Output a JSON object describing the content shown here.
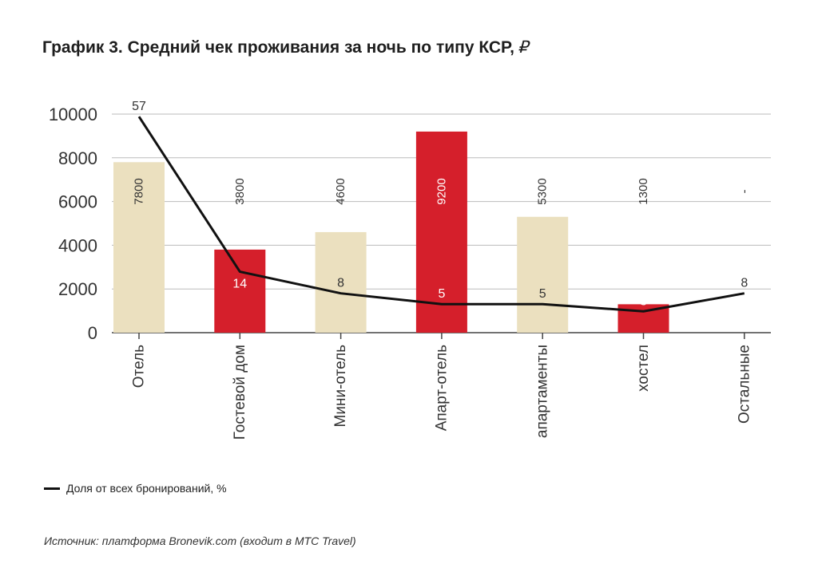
{
  "chart_data": {
    "type": "bar+line",
    "title": "График 3. Средний чек проживания за ночь по типу КСР,",
    "title_unit": "₽",
    "categories": [
      "Отель",
      "Гостевой дом",
      "Мини-отель",
      "Апарт-отель",
      "апартаменты",
      "хостел",
      "Остальные"
    ],
    "bar_values": [
      7800,
      3800,
      4600,
      9200,
      5300,
      1300,
      null
    ],
    "bar_labels": [
      "7800",
      "3800",
      "4600",
      "9200",
      "5300",
      "1300",
      "-"
    ],
    "bar_colors": [
      "#ebe0bf",
      "#d51f2b",
      "#ebe0bf",
      "#d51f2b",
      "#ebe0bf",
      "#d51f2b",
      "#ebe0bf"
    ],
    "yticks": [
      "0",
      "2000",
      "4000",
      "6000",
      "8000",
      "10000"
    ],
    "ylim": [
      0,
      10000
    ],
    "grid": true,
    "series": [
      {
        "name": "Доля от всех бронирований, %",
        "values": [
          57,
          14,
          8,
          5,
          5,
          3,
          8
        ],
        "color": "#111111"
      }
    ],
    "legend_position": "bottom-left"
  },
  "source": "Источник: платформа Bronevik.com (входит в МТС Travel)"
}
